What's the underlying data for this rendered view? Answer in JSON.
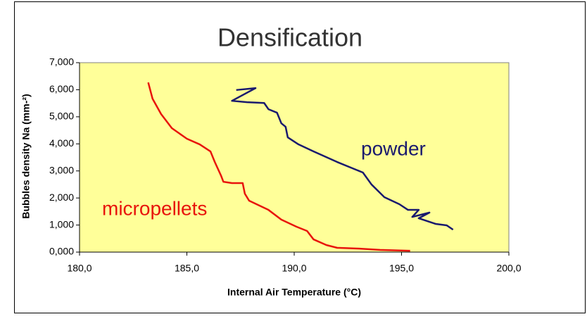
{
  "chart_data": {
    "type": "line",
    "title": "Densification",
    "xlabel": "Internal Air Temperature (°C)",
    "ylabel": "Bubbles density Na (mm-²)",
    "annotations": [
      {
        "text": "powder",
        "color": "#1a1a6e"
      },
      {
        "text": "micropellets",
        "color": "#e8140c"
      }
    ],
    "xlim": [
      180,
      200
    ],
    "xticks": [
      {
        "value": 180,
        "label": "180,0"
      },
      {
        "value": 185,
        "label": "185,0"
      },
      {
        "value": 190,
        "label": "190,0"
      },
      {
        "value": 195,
        "label": "195,0"
      },
      {
        "value": 200,
        "label": "200,0"
      }
    ],
    "ylim": [
      0,
      7000
    ],
    "yticks": [
      {
        "value": 0,
        "label": "0,000"
      },
      {
        "value": 1000,
        "label": "1,000"
      },
      {
        "value": 2000,
        "label": "2,000"
      },
      {
        "value": 3000,
        "label": "3,000"
      },
      {
        "value": 4000,
        "label": "4,000"
      },
      {
        "value": 5000,
        "label": "5,000"
      },
      {
        "value": 6000,
        "label": "6,000"
      },
      {
        "value": 7000,
        "label": "7,000"
      }
    ],
    "background": "#ffff99",
    "series": [
      {
        "color": "#e8140c",
        "x": [
          183.2,
          183.4,
          183.8,
          184.3,
          185.0,
          185.6,
          186.1,
          186.3,
          186.6,
          186.7,
          187.1,
          187.6,
          187.7,
          187.9,
          188.8,
          189.4,
          190.1,
          190.6,
          190.9,
          191.5,
          192.0,
          193.0,
          194.0,
          195.4
        ],
        "values": [
          6270,
          5670,
          5100,
          4580,
          4190,
          3980,
          3720,
          3330,
          2810,
          2600,
          2550,
          2550,
          2160,
          1900,
          1560,
          1200,
          940,
          780,
          470,
          260,
          160,
          130,
          80,
          50
        ]
      },
      {
        "color": "#1a1a6e",
        "x": [
          187.3,
          188.2,
          187.1,
          187.8,
          188.6,
          188.8,
          189.2,
          189.4,
          189.6,
          189.7,
          190.2,
          190.9,
          192.0,
          193.2,
          193.6,
          194.2,
          194.9,
          195.3,
          195.8,
          195.5,
          196.3,
          195.8,
          196.6,
          197.1,
          197.4
        ],
        "values": [
          5990,
          6060,
          5590,
          5540,
          5510,
          5280,
          5150,
          4760,
          4630,
          4240,
          3980,
          3720,
          3330,
          2940,
          2500,
          2030,
          1770,
          1560,
          1560,
          1300,
          1460,
          1250,
          1040,
          990,
          830
        ]
      }
    ]
  }
}
